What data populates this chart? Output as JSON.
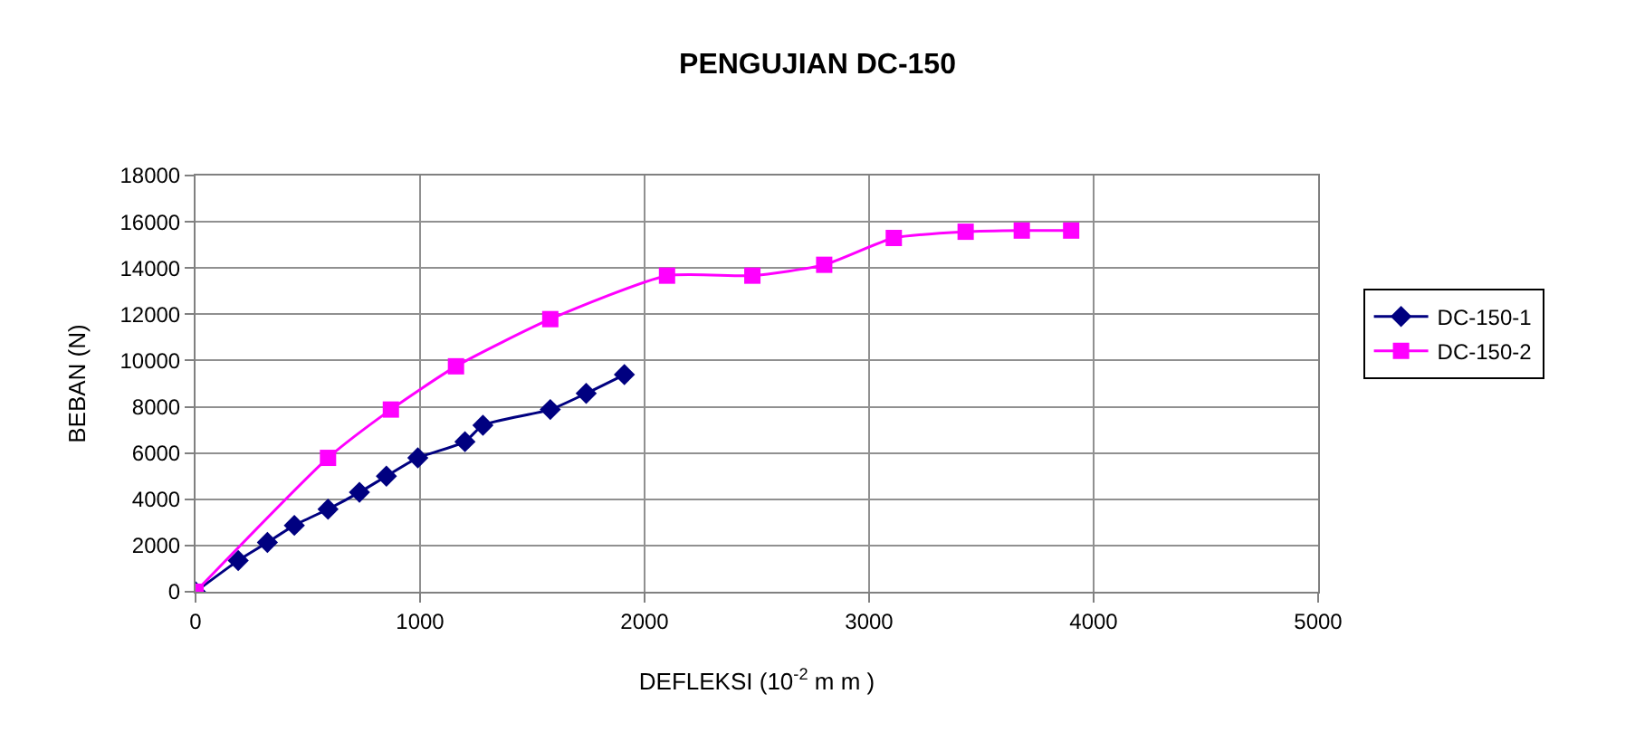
{
  "chart_data": {
    "type": "line",
    "title": "PENGUJIAN DC-150",
    "xlabel": "DEFLEKSI (10$^{-2}$ m m )",
    "ylabel": "BEBAN (N)",
    "xlim": [
      0,
      5000
    ],
    "xticks": [
      0,
      1000,
      2000,
      3000,
      4000,
      5000
    ],
    "ylim": [
      0,
      18000
    ],
    "yticks": [
      0,
      2000,
      4000,
      6000,
      8000,
      10000,
      12000,
      14000,
      16000,
      18000
    ],
    "grid": true,
    "legend": "right",
    "line_style": "solid",
    "series": [
      {
        "name": "DC-150-1",
        "color": "#000080",
        "marker": "diamond",
        "x": [
          0,
          190,
          320,
          440,
          590,
          730,
          850,
          990,
          1200,
          1280,
          1580,
          1740,
          1910
        ],
        "values": [
          0,
          1350,
          2130,
          2870,
          3570,
          4300,
          5000,
          5790,
          6490,
          7200,
          7880,
          8580,
          9390
        ]
      },
      {
        "name": "DC-150-2",
        "color": "#ff00ff",
        "marker": "square",
        "x": [
          0,
          590,
          870,
          1160,
          1580,
          2100,
          2480,
          2800,
          3110,
          3430,
          3680,
          3900
        ],
        "values": [
          0,
          5790,
          7880,
          9750,
          11790,
          13670,
          13670,
          14140,
          15300,
          15570,
          15620,
          15620
        ]
      }
    ]
  }
}
